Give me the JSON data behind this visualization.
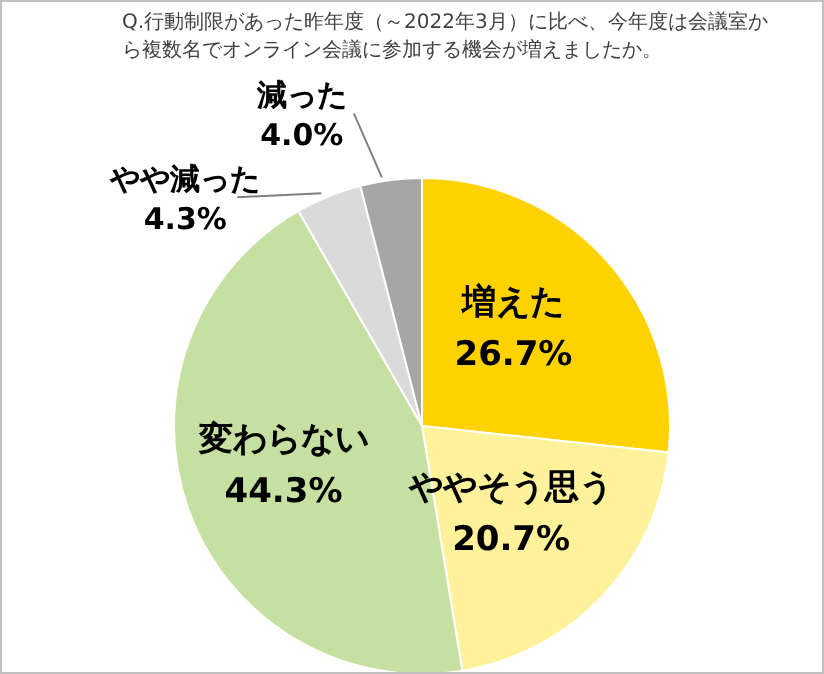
{
  "chart_data": {
    "type": "pie",
    "title": "Q.行動制限があった昨年度（～2022年3月）に比べ、今年度は会議室から複数名でオンライン会議に参加する機会が増えましたか。",
    "categories": [
      "増えた",
      "ややそう思う",
      "変わらない",
      "やや減った",
      "減った"
    ],
    "values": [
      26.7,
      20.7,
      44.3,
      4.3,
      4.0
    ],
    "value_labels": [
      "26.7%",
      "20.7%",
      "44.3%",
      "4.3%",
      "4.0%"
    ],
    "colors": [
      "#ffd200",
      "#fff29a",
      "#c5e0a0",
      "#dadada",
      "#a6a6a6"
    ],
    "legend": false
  }
}
